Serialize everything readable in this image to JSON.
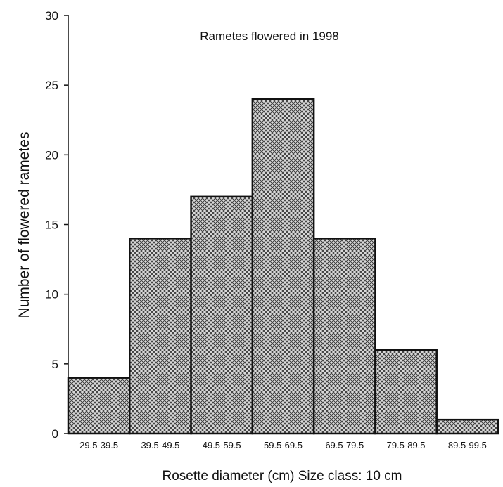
{
  "chart_data": {
    "type": "bar",
    "title": "Rametes flowered in 1998",
    "xlabel": "Rosette diameter (cm)  Size class: 10 cm",
    "ylabel": "Number of flowered rametes",
    "categories": [
      "29.5-39.5",
      "39.5-49.5",
      "49.5-59.5",
      "59.5-69.5",
      "69.5-79.5",
      "79.5-89.5",
      "89.5-99.5"
    ],
    "values": [
      4,
      14,
      17,
      24,
      14,
      6,
      1
    ],
    "ylim": [
      0,
      30
    ],
    "yticks": [
      "0",
      "5",
      "10",
      "15",
      "20",
      "25",
      "30"
    ],
    "grid": false,
    "legend": "none",
    "colors": {
      "bar_fill": "#d9d9d9",
      "bar_pattern": "#3a3a3a",
      "bar_edge": "#111111",
      "axis": "#111111"
    }
  }
}
